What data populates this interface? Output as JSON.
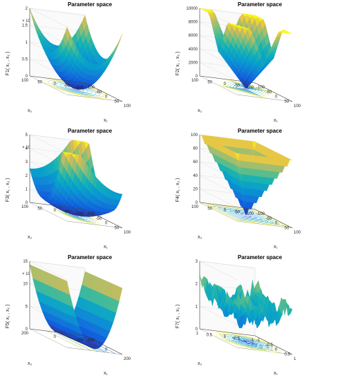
{
  "chart_data": [
    {
      "id": "p1",
      "type": "surface3d",
      "title": "Parameter space",
      "zlabel": "F1( x₁ , x₂ )",
      "xlabel": "x₁",
      "ylabel": "x₂",
      "z_exponent": "× 10⁴",
      "z_ticks": [
        "0",
        "0.5",
        "1",
        "1.5",
        "2"
      ],
      "x_ticks": [
        "-100",
        "-50",
        "0",
        "50",
        "100"
      ],
      "y_ticks": [
        "100",
        "50",
        "0",
        "-50",
        "-100"
      ],
      "zlim": [
        0,
        2
      ],
      "colormap": "parula",
      "contour_floor": "circles"
    },
    {
      "id": "p2",
      "type": "surface3d",
      "title": "Parameter space",
      "zlabel": "F2( x₁ , x₂ )",
      "xlabel": "x₁",
      "ylabel": "x₂",
      "z_exponent": "",
      "z_ticks": [
        "0",
        "2000",
        "4000",
        "6000",
        "8000",
        "10000"
      ],
      "x_ticks": [
        "-100",
        "-50",
        "0",
        "50",
        "100"
      ],
      "y_ticks": [
        "100",
        "50",
        "0",
        "-50",
        "-100"
      ],
      "zlim": [
        0,
        10000
      ],
      "colormap": "parula",
      "contour_floor": "diamonds"
    },
    {
      "id": "p3",
      "type": "surface3d",
      "title": "Parameter space",
      "zlabel": "F3( x₁ , x₂ )",
      "xlabel": "x₁",
      "ylabel": "x₂",
      "z_exponent": "× 10⁴",
      "z_ticks": [
        "0",
        "1",
        "2",
        "3",
        "4",
        "5"
      ],
      "x_ticks": [
        "-100",
        "-50",
        "0",
        "50",
        "100"
      ],
      "y_ticks": [
        "100",
        "50",
        "0",
        "-50",
        "-100"
      ],
      "zlim": [
        0,
        5
      ],
      "colormap": "parula",
      "contour_floor": "ellipses"
    },
    {
      "id": "p4",
      "type": "surface3d",
      "title": "Parameter space",
      "zlabel": "F4( x₁ , x₂ )",
      "xlabel": "x₁",
      "ylabel": "x₂",
      "z_exponent": "",
      "z_ticks": [
        "0",
        "20",
        "40",
        "60",
        "80",
        "100"
      ],
      "x_ticks": [
        "-100",
        "-50",
        "0",
        "50",
        "100"
      ],
      "y_ticks": [
        "100",
        "50",
        "0",
        "-50",
        "-100"
      ],
      "zlim": [
        0,
        100
      ],
      "colormap": "parula",
      "contour_floor": "squares"
    },
    {
      "id": "p5",
      "type": "surface3d",
      "title": "Parameter space",
      "zlabel": "F5( x₁ , x₂ )",
      "xlabel": "x₁",
      "ylabel": "x₂",
      "z_exponent": "× 10¹⁰",
      "z_ticks": [
        "0",
        "5",
        "10",
        "15"
      ],
      "x_ticks": [
        "-200",
        "0",
        "200"
      ],
      "y_ticks": [
        "200",
        "0",
        "-200"
      ],
      "zlim": [
        0,
        15
      ],
      "colormap": "parula",
      "contour_floor": "lines"
    },
    {
      "id": "p6",
      "type": "surface3d",
      "title": "Parameter space",
      "zlabel": "F7( x₁ , x₂ )",
      "xlabel": "x₁",
      "ylabel": "x₂",
      "z_exponent": "",
      "z_ticks": [
        "0",
        "1",
        "2",
        "3"
      ],
      "x_ticks": [
        "-1",
        "-0.5",
        "0",
        "0.5",
        "1"
      ],
      "y_ticks": [
        "1",
        "0.5",
        "0",
        "-0.5",
        "-1"
      ],
      "zlim": [
        0,
        3
      ],
      "colormap": "parula",
      "contour_floor": "noise"
    }
  ]
}
